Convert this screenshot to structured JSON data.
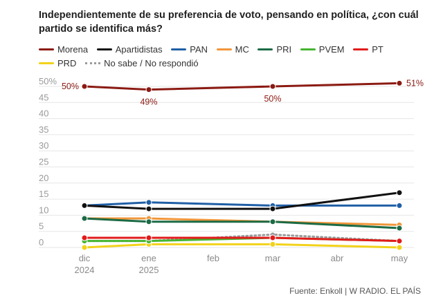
{
  "title": "Independientemente de su preferencia de voto, pensando en política, ¿con cuál partido se identifica más?",
  "source": "Fuente: Enkoll | W RADIO. EL PAÍS",
  "legend": [
    {
      "name": "Morena",
      "color": "#8b1a12"
    },
    {
      "name": "Apartidistas",
      "color": "#111111"
    },
    {
      "name": "PAN",
      "color": "#1f5fa6"
    },
    {
      "name": "MC",
      "color": "#f0963a"
    },
    {
      "name": "PRI",
      "color": "#1c6b45"
    },
    {
      "name": "PVEM",
      "color": "#46b531"
    },
    {
      "name": "PT",
      "color": "#e21b1b"
    },
    {
      "name": "PRD",
      "color": "#f2d21a"
    },
    {
      "name": "No sabe / No respondió",
      "color": "#9a9a9a",
      "dotted": true
    }
  ],
  "chart_data": {
    "type": "line",
    "x_ticks": [
      {
        "label": "dic",
        "sub": "2024",
        "x": 0
      },
      {
        "label": "ene",
        "sub": "2025",
        "x": 1
      },
      {
        "label": "feb",
        "sub": "",
        "x": 2
      },
      {
        "label": "mar",
        "sub": "",
        "x": 3
      },
      {
        "label": "abr",
        "sub": "",
        "x": 4
      },
      {
        "label": "may",
        "sub": "",
        "x": 5
      }
    ],
    "y_ticks": [
      "0",
      "5",
      "10",
      "15",
      "20",
      "25",
      "30",
      "35",
      "40",
      "45",
      "50%"
    ],
    "ylim": [
      0,
      50
    ],
    "grid": true,
    "series": [
      {
        "name": "Morena",
        "color": "#8b1a12",
        "points": [
          [
            0,
            50
          ],
          [
            1,
            49
          ],
          [
            3,
            50
          ],
          [
            5,
            51
          ]
        ],
        "labels": [
          "50%",
          "49%",
          "50%",
          "51%"
        ]
      },
      {
        "name": "Apartidistas",
        "color": "#111111",
        "points": [
          [
            0,
            13
          ],
          [
            1,
            12
          ],
          [
            3,
            12
          ],
          [
            5,
            17
          ]
        ]
      },
      {
        "name": "PAN",
        "color": "#1f5fa6",
        "points": [
          [
            0,
            13
          ],
          [
            1,
            14
          ],
          [
            3,
            13
          ],
          [
            5,
            13
          ]
        ]
      },
      {
        "name": "MC",
        "color": "#f0963a",
        "points": [
          [
            0,
            9
          ],
          [
            1,
            9
          ],
          [
            3,
            8
          ],
          [
            5,
            7
          ]
        ]
      },
      {
        "name": "PRI",
        "color": "#1c6b45",
        "points": [
          [
            0,
            9
          ],
          [
            1,
            8
          ],
          [
            3,
            8
          ],
          [
            5,
            6
          ]
        ]
      },
      {
        "name": "PVEM",
        "color": "#46b531",
        "points": [
          [
            0,
            2
          ],
          [
            1,
            2
          ],
          [
            3,
            3
          ],
          [
            5,
            2
          ]
        ]
      },
      {
        "name": "PT",
        "color": "#e21b1b",
        "points": [
          [
            0,
            3
          ],
          [
            1,
            3
          ],
          [
            3,
            3
          ],
          [
            5,
            2
          ]
        ]
      },
      {
        "name": "PRD",
        "color": "#f2d21a",
        "points": [
          [
            0,
            0
          ],
          [
            1,
            1
          ],
          [
            3,
            1
          ],
          [
            5,
            0
          ]
        ]
      },
      {
        "name": "No sabe / No respondió",
        "color": "#9a9a9a",
        "dotted": true,
        "points": [
          [
            0,
            2
          ],
          [
            1,
            2
          ],
          [
            3,
            4
          ],
          [
            5,
            2
          ]
        ]
      }
    ]
  }
}
